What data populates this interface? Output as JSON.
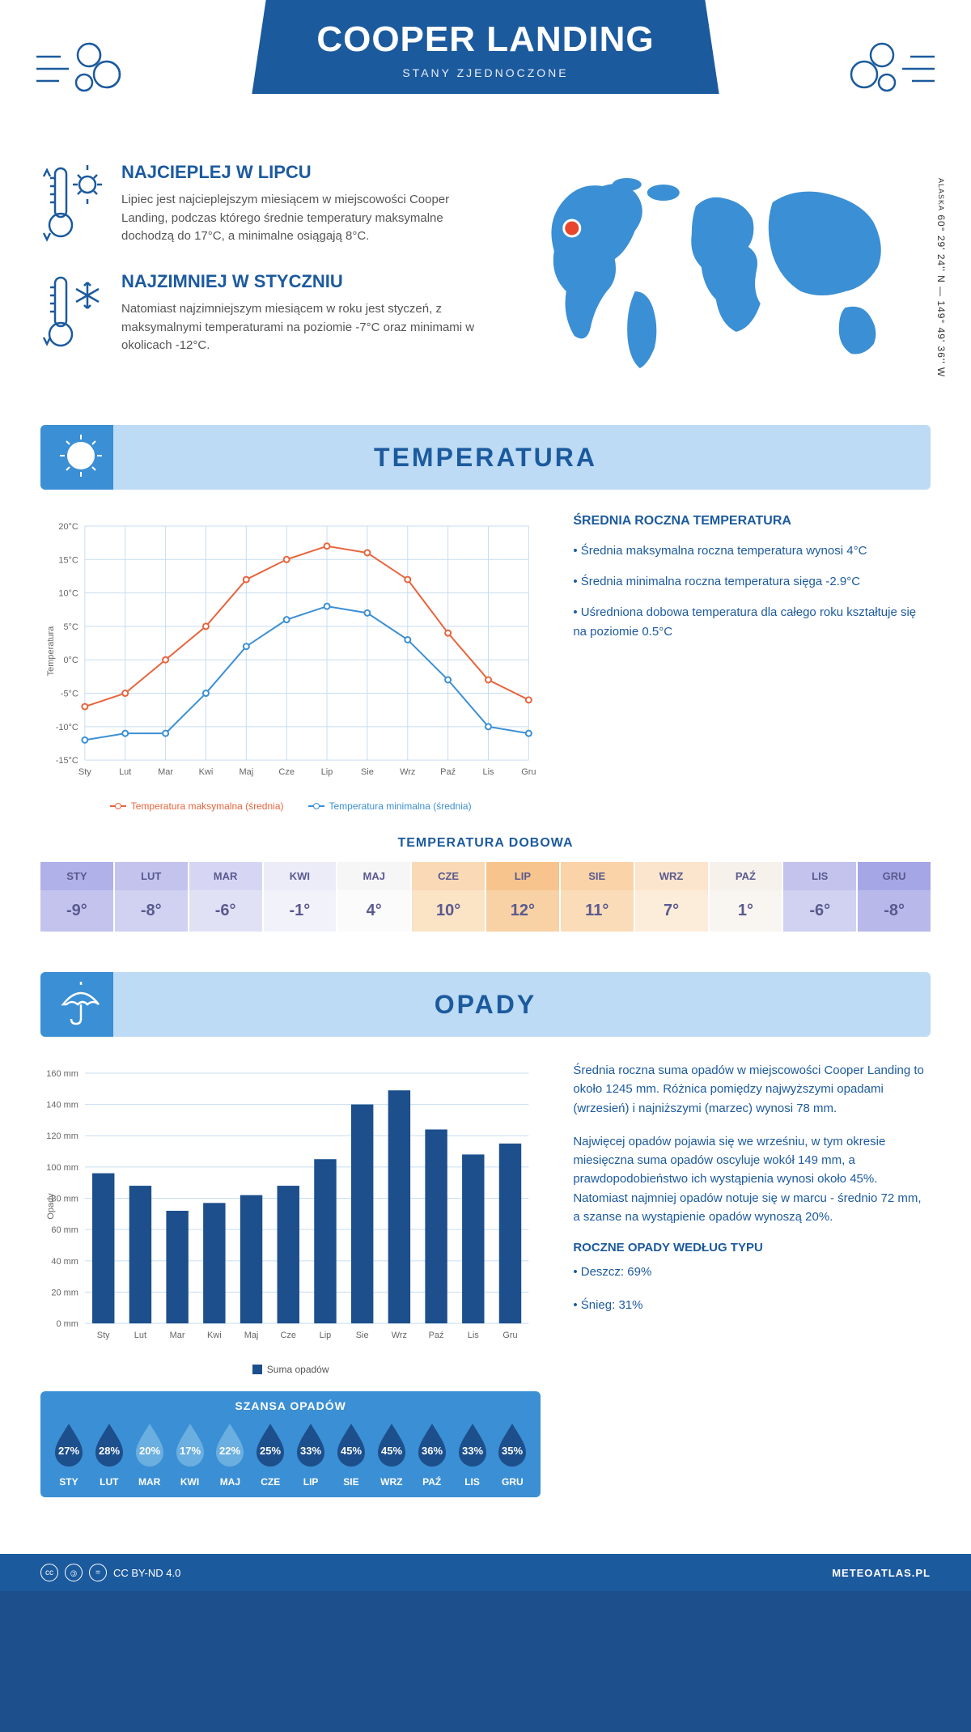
{
  "header": {
    "title": "COOPER LANDING",
    "subtitle": "STANY ZJEDNOCZONE",
    "coords": "60° 29' 24'' N — 149° 49' 36'' W",
    "region": "ALASKA"
  },
  "facts": {
    "hot": {
      "title": "NAJCIEPLEJ W LIPCU",
      "body": "Lipiec jest najcieplejszym miesiącem w miejscowości Cooper Landing, podczas którego średnie temperatury maksymalne dochodzą do 17°C, a minimalne osiągają 8°C."
    },
    "cold": {
      "title": "NAJZIMNIEJ W STYCZNIU",
      "body": "Natomiast najzimniejszym miesiącem w roku jest styczeń, z maksymalnymi temperaturami na poziomie -7°C oraz minimami w okolicach -12°C."
    }
  },
  "temperature": {
    "section_title": "TEMPERATURA",
    "months": [
      "Sty",
      "Lut",
      "Mar",
      "Kwi",
      "Maj",
      "Cze",
      "Lip",
      "Sie",
      "Wrz",
      "Paź",
      "Lis",
      "Gru"
    ],
    "months_upper": [
      "STY",
      "LUT",
      "MAR",
      "KWI",
      "MAJ",
      "CZE",
      "LIP",
      "SIE",
      "WRZ",
      "PAŹ",
      "LIS",
      "GRU"
    ],
    "chart": {
      "ylabel": "Temperatura",
      "ymin": -15,
      "ymax": 20,
      "ystep": 5,
      "max_series": [
        -7,
        -5,
        0,
        5,
        12,
        15,
        17,
        16,
        12,
        4,
        -3,
        -6
      ],
      "min_series": [
        -12,
        -11,
        -11,
        -5,
        2,
        6,
        8,
        7,
        3,
        -3,
        -10,
        -11
      ],
      "max_color": "#e8643c",
      "min_color": "#3b8fd4",
      "grid_color": "#c7ddf0",
      "bg_color": "#ffffff",
      "legend_max": "Temperatura maksymalna (średnia)",
      "legend_min": "Temperatura minimalna (średnia)"
    },
    "side": {
      "title": "ŚREDNIA ROCZNA TEMPERATURA",
      "bullets": [
        "Średnia maksymalna roczna temperatura wynosi 4°C",
        "Średnia minimalna roczna temperatura sięga -2.9°C",
        "Uśredniona dobowa temperatura dla całego roku kształtuje się na poziomie 0.5°C"
      ]
    },
    "daily": {
      "title": "TEMPERATURA DOBOWA",
      "values": [
        -9,
        -8,
        -6,
        -1,
        4,
        10,
        12,
        11,
        7,
        1,
        -6,
        -8
      ],
      "header_colors": [
        "#b0b1e8",
        "#c3c3ee",
        "#d6d6f4",
        "#ececf9",
        "#f6f6f6",
        "#fad9b6",
        "#f7c48e",
        "#fad3a9",
        "#fbe5cc",
        "#f6f1eb",
        "#c3c3ee",
        "#a5a6e5"
      ],
      "value_colors": [
        "#c3c3ee",
        "#d1d1f1",
        "#e1e1f6",
        "#f2f2fb",
        "#fbfbfb",
        "#fbe3c6",
        "#f8d1a5",
        "#fadcb9",
        "#fcecda",
        "#f9f5f1",
        "#d1d1f1",
        "#b8b9ea"
      ],
      "text_color": "#5a5a8f"
    }
  },
  "precip": {
    "section_title": "OPADY",
    "chart": {
      "ylabel": "Opady",
      "ymin": 0,
      "ymax": 160,
      "ystep": 20,
      "values": [
        96,
        88,
        72,
        77,
        82,
        88,
        105,
        140,
        149,
        124,
        108,
        115
      ],
      "bar_color": "#1c4f8c",
      "grid_color": "#c7ddf0",
      "legend": "Suma opadów"
    },
    "side": {
      "p1": "Średnia roczna suma opadów w miejscowości Cooper Landing to około 1245 mm. Różnica pomiędzy najwyższymi opadami (wrzesień) i najniższymi (marzec) wynosi 78 mm.",
      "p2": "Najwięcej opadów pojawia się we wrześniu, w tym okresie miesięczna suma opadów oscyluje wokół 149 mm, a prawdopodobieństwo ich wystąpienia wynosi około 45%. Natomiast najmniej opadów notuje się w marcu - średnio 72 mm, a szanse na wystąpienie opadów wynoszą 20%.",
      "type_title": "ROCZNE OPADY WEDŁUG TYPU",
      "types": [
        "Deszcz: 69%",
        "Śnieg: 31%"
      ]
    },
    "chance": {
      "title": "SZANSA OPADÓW",
      "values": [
        27,
        28,
        20,
        17,
        22,
        25,
        33,
        45,
        45,
        36,
        33,
        35
      ],
      "dark_color": "#1c4f8c",
      "light_color": "#6aafe0",
      "threshold": 25
    }
  },
  "footer": {
    "license": "CC BY-ND 4.0",
    "site": "METEOATLAS.PL"
  },
  "colors": {
    "primary": "#1c5a9e",
    "accent": "#3b8fd4",
    "light": "#bddbf4",
    "map_fill": "#3b8fd4",
    "marker": "#e8452c"
  }
}
